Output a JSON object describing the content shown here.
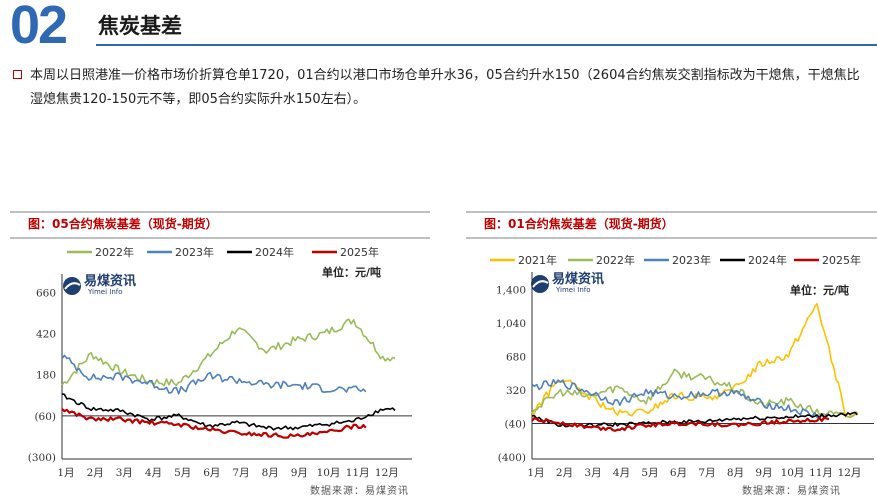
{
  "header": {
    "number": "02",
    "title": "焦炭基差",
    "paragraph": "本周以日照港准一价格市场价折算仓单1720，01合约以港口市场仓单升水36，05合约升水150（2604合约焦炭交割指标改为干熄焦，干熄焦比湿熄焦贵120-150元不等，即05合约实际升水150左右）。"
  },
  "colors": {
    "accent": "#2f69b4",
    "title_red": "#c00000",
    "y2021": "#ffc000",
    "y2022": "#9bbb59",
    "y2023": "#4f81bd",
    "y2024": "#000000",
    "y2025": "#c00000"
  },
  "logo": {
    "name_cn": "易煤资讯",
    "name_en": "Yimei Info"
  },
  "chart_data": [
    {
      "type": "line",
      "title": "图：05合约焦炭基差（现货-期货）",
      "unit_label": "单位：元/吨",
      "source": "数据来源：易煤资讯",
      "x_ticks": [
        "1月",
        "2月",
        "3月",
        "4月",
        "5月",
        "6月",
        "7月",
        "8月",
        "9月",
        "10月",
        "11月",
        "12月"
      ],
      "y_ticks": [
        "660",
        "420",
        "180",
        "(60)",
        "(300)"
      ],
      "ylim": [
        -300,
        720
      ],
      "series": [
        {
          "name": "2022年",
          "color_key": "y2022",
          "values": [
            120,
            300,
            200,
            140,
            130,
            280,
            450,
            320,
            380,
            420,
            500,
            280
          ]
        },
        {
          "name": "2023年",
          "color_key": "y2023",
          "values": [
            290,
            160,
            170,
            130,
            80,
            170,
            150,
            120,
            120,
            100,
            90,
            null
          ]
        },
        {
          "name": "2024年",
          "color_key": "y2024",
          "values": [
            60,
            -20,
            -30,
            -80,
            -60,
            -120,
            -100,
            -130,
            -130,
            -110,
            -90,
            -20
          ]
        },
        {
          "name": "2025年",
          "color_key": "y2025",
          "values": [
            -20,
            -80,
            -80,
            -100,
            -110,
            -140,
            -160,
            -170,
            -180,
            -160,
            -120,
            null
          ]
        }
      ]
    },
    {
      "type": "line",
      "title": "图：01合约焦炭基差（现货-期货）",
      "unit_label": "单位：元/吨",
      "source": "数据来源：易煤资讯",
      "x_ticks": [
        "1月",
        "2月",
        "3月",
        "4月",
        "5月",
        "6月",
        "7月",
        "8月",
        "9月",
        "10月",
        "11月",
        "12月"
      ],
      "y_ticks": [
        "1,400",
        "1,040",
        "680",
        "320",
        "(40)",
        "(400)"
      ],
      "ylim": [
        -400,
        1500
      ],
      "series": [
        {
          "name": "2021年",
          "color_key": "y2021",
          "values": [
            60,
            450,
            250,
            60,
            80,
            260,
            230,
            300,
            600,
            700,
            1250,
            60
          ]
        },
        {
          "name": "2022年",
          "color_key": "y2022",
          "values": [
            100,
            300,
            250,
            350,
            200,
            500,
            450,
            350,
            160,
            200,
            80,
            40
          ]
        },
        {
          "name": "2023年",
          "color_key": "y2023",
          "values": [
            350,
            400,
            300,
            180,
            300,
            250,
            280,
            300,
            180,
            120,
            40,
            null
          ]
        },
        {
          "name": "2024年",
          "color_key": "y2024",
          "values": [
            40,
            -60,
            -60,
            -50,
            -40,
            -20,
            -20,
            10,
            20,
            30,
            40,
            60
          ]
        },
        {
          "name": "2025年",
          "color_key": "y2025",
          "values": [
            0,
            -30,
            -80,
            -100,
            -60,
            -40,
            -40,
            -60,
            -40,
            -10,
            0,
            null
          ]
        }
      ]
    }
  ]
}
